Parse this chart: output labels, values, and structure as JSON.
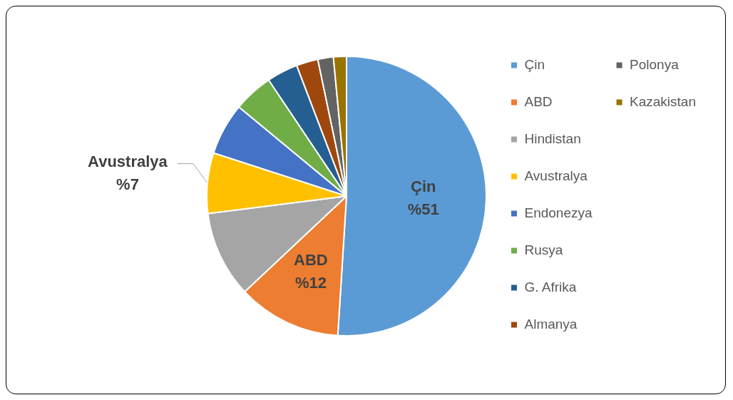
{
  "chart_data": {
    "type": "pie",
    "categories": [
      "Çin",
      "ABD",
      "Hindistan",
      "Avustralya",
      "Endonezya",
      "Rusya",
      "G. Afrika",
      "Almanya",
      "Polonya",
      "Kazakistan"
    ],
    "values": [
      51,
      12,
      10,
      7,
      6,
      4.6,
      3.6,
      2.5,
      1.8,
      1.5
    ],
    "colors": [
      "#5b9bd5",
      "#ed7d31",
      "#a5a5a5",
      "#ffc000",
      "#4472c4",
      "#70ad47",
      "#255e91",
      "#9e480e",
      "#636363",
      "#997300"
    ],
    "value_labels": [
      "%51",
      "%12",
      null,
      "%7",
      null,
      null,
      null,
      null,
      null,
      null
    ],
    "legend": "right"
  }
}
